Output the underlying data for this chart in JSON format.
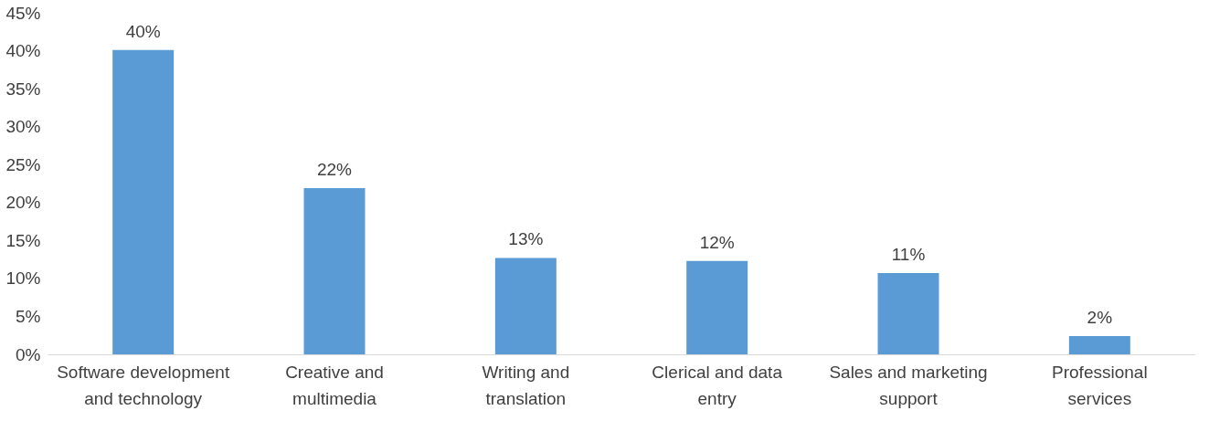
{
  "chart_data": {
    "type": "bar",
    "categories": [
      "Software development and technology",
      "Creative and multimedia",
      "Writing and translation",
      "Clerical and data entry",
      "Sales and marketing support",
      "Professional services"
    ],
    "values": [
      40.1,
      21.9,
      12.7,
      12.3,
      10.7,
      2.4
    ],
    "value_labels": [
      "40%",
      "22%",
      "13%",
      "12%",
      "11%",
      "2%"
    ],
    "color": "#5b9bd5",
    "ylim": [
      0,
      45
    ],
    "yticks": [
      {
        "value": 0,
        "label": "0%"
      },
      {
        "value": 5,
        "label": "5%"
      },
      {
        "value": 10,
        "label": "10%"
      },
      {
        "value": 15,
        "label": "15%"
      },
      {
        "value": 20,
        "label": "20%"
      },
      {
        "value": 25,
        "label": "25%"
      },
      {
        "value": 30,
        "label": "30%"
      },
      {
        "value": 35,
        "label": "35%"
      },
      {
        "value": 40,
        "label": "40%"
      },
      {
        "value": 45,
        "label": "45%"
      }
    ],
    "grid": false
  }
}
